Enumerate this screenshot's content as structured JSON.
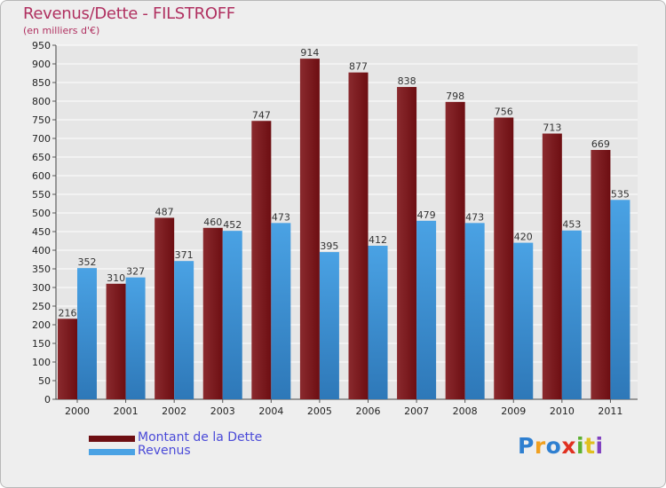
{
  "header": {
    "title": "Revenus/Dette - FILSTROFF",
    "subtitle": "(en milliers d'€)"
  },
  "logo": {
    "text": "Proxiti",
    "letters": [
      "P",
      "r",
      "o",
      "x",
      "i",
      "t",
      "i"
    ],
    "letter_colors": [
      "#2e7fd0",
      "#f0a020",
      "#2e7fd0",
      "#e03020",
      "#5cb030",
      "#e0c020",
      "#8040c0"
    ]
  },
  "colors": {
    "debt": "#6d0e12",
    "debt_top": "#8a2a2e",
    "revenue": "#4aa2e4",
    "revenue_dark": "#2e78b8",
    "grid": "#ffffff",
    "plot_bg": "#e6e6e6"
  },
  "chart_data": {
    "type": "bar",
    "title": "Revenus/Dette - FILSTROFF",
    "ylabel": "(en milliers d'€)",
    "xlabel": "",
    "categories": [
      "2000",
      "2001",
      "2002",
      "2003",
      "2004",
      "2005",
      "2006",
      "2007",
      "2008",
      "2009",
      "2010",
      "2011"
    ],
    "series": [
      {
        "name": "Montant de la Dette",
        "values": [
          216,
          310,
          487,
          460,
          747,
          914,
          877,
          838,
          798,
          756,
          713,
          669
        ]
      },
      {
        "name": "Revenus",
        "values": [
          352,
          327,
          371,
          452,
          473,
          395,
          412,
          479,
          473,
          420,
          453,
          535
        ]
      }
    ],
    "ylim": [
      0,
      950
    ],
    "ytick_step": 50,
    "grid": true,
    "legend": "bottom-left"
  }
}
